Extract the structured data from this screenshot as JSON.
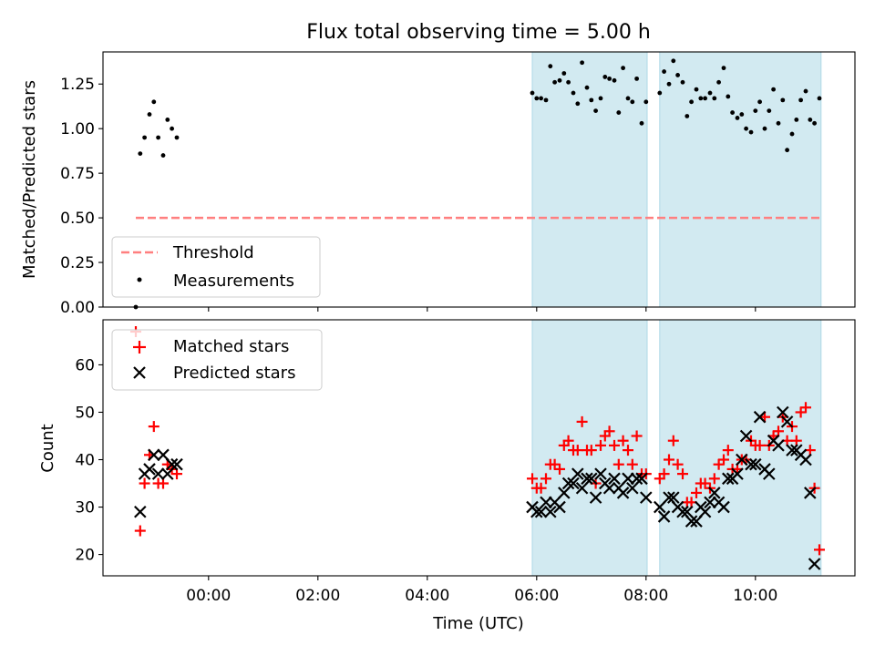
{
  "title": "Flux total observing time = 5.00 h",
  "chart_data": [
    {
      "type": "scatter",
      "panel": "top",
      "ylabel": "Matched/Predicted stars",
      "ylim": [
        0,
        1.43
      ],
      "y_ticks": [
        0.0,
        0.25,
        0.5,
        0.75,
        1.0,
        1.25
      ],
      "y_tick_labels": [
        "0.00",
        "0.25",
        "0.50",
        "0.75",
        "1.00",
        "1.25"
      ],
      "threshold": {
        "name": "Threshold",
        "value": 0.5,
        "x_start": -1.33,
        "x_end": 11.2,
        "color": "#ff7f7f"
      },
      "series": [
        {
          "name": "Measurements",
          "color": "#000000",
          "points": [
            [
              -1.33,
              0.0
            ],
            [
              -1.25,
              0.86
            ],
            [
              -1.17,
              0.95
            ],
            [
              -1.08,
              1.08
            ],
            [
              -1.0,
              1.15
            ],
            [
              -0.92,
              0.95
            ],
            [
              -0.83,
              0.85
            ],
            [
              -0.75,
              1.05
            ],
            [
              -0.67,
              1.0
            ],
            [
              -0.58,
              0.95
            ],
            [
              5.92,
              1.2
            ],
            [
              6.0,
              1.17
            ],
            [
              6.08,
              1.17
            ],
            [
              6.17,
              1.16
            ],
            [
              6.25,
              1.35
            ],
            [
              6.33,
              1.26
            ],
            [
              6.42,
              1.27
            ],
            [
              6.5,
              1.31
            ],
            [
              6.58,
              1.26
            ],
            [
              6.67,
              1.2
            ],
            [
              6.75,
              1.14
            ],
            [
              6.83,
              1.37
            ],
            [
              6.92,
              1.23
            ],
            [
              7.0,
              1.16
            ],
            [
              7.08,
              1.1
            ],
            [
              7.17,
              1.17
            ],
            [
              7.25,
              1.29
            ],
            [
              7.33,
              1.28
            ],
            [
              7.42,
              1.27
            ],
            [
              7.5,
              1.09
            ],
            [
              7.58,
              1.34
            ],
            [
              7.67,
              1.17
            ],
            [
              7.75,
              1.15
            ],
            [
              7.83,
              1.28
            ],
            [
              7.92,
              1.03
            ],
            [
              8.0,
              1.15
            ],
            [
              8.25,
              1.2
            ],
            [
              8.33,
              1.32
            ],
            [
              8.42,
              1.25
            ],
            [
              8.5,
              1.38
            ],
            [
              8.58,
              1.3
            ],
            [
              8.67,
              1.26
            ],
            [
              8.75,
              1.07
            ],
            [
              8.83,
              1.15
            ],
            [
              8.92,
              1.22
            ],
            [
              9.0,
              1.17
            ],
            [
              9.08,
              1.17
            ],
            [
              9.17,
              1.2
            ],
            [
              9.25,
              1.17
            ],
            [
              9.33,
              1.26
            ],
            [
              9.42,
              1.34
            ],
            [
              9.5,
              1.18
            ],
            [
              9.58,
              1.09
            ],
            [
              9.67,
              1.06
            ],
            [
              9.75,
              1.08
            ],
            [
              9.83,
              1.0
            ],
            [
              9.92,
              0.98
            ],
            [
              10.0,
              1.1
            ],
            [
              10.08,
              1.15
            ],
            [
              10.17,
              1.0
            ],
            [
              10.25,
              1.1
            ],
            [
              10.33,
              1.22
            ],
            [
              10.42,
              1.03
            ],
            [
              10.5,
              1.16
            ],
            [
              10.58,
              0.88
            ],
            [
              10.67,
              0.97
            ],
            [
              10.75,
              1.05
            ],
            [
              10.83,
              1.16
            ],
            [
              10.92,
              1.21
            ],
            [
              11.0,
              1.05
            ],
            [
              11.08,
              1.03
            ],
            [
              11.17,
              1.17
            ]
          ]
        }
      ],
      "legend": {
        "entries": [
          "Threshold",
          "Measurements"
        ],
        "placement": "lower-left"
      }
    },
    {
      "type": "scatter",
      "panel": "bottom",
      "xlabel": "Time (UTC)",
      "ylabel": "Count",
      "xlim": [
        -1.93,
        11.82
      ],
      "ylim": [
        15.5,
        69.5
      ],
      "x_ticks": [
        0,
        2,
        4,
        6,
        8,
        10
      ],
      "x_tick_labels": [
        "00:00",
        "02:00",
        "04:00",
        "06:00",
        "08:00",
        "10:00"
      ],
      "y_ticks": [
        20,
        30,
        40,
        50,
        60
      ],
      "y_tick_labels": [
        "20",
        "30",
        "40",
        "50",
        "60"
      ],
      "series": [
        {
          "name": "Matched stars",
          "color": "#ff0000",
          "marker": "plus",
          "points": [
            [
              -1.33,
              67
            ],
            [
              -1.25,
              25
            ],
            [
              -1.17,
              35
            ],
            [
              -1.08,
              41
            ],
            [
              -1.0,
              47
            ],
            [
              -0.92,
              35
            ],
            [
              -0.83,
              35
            ],
            [
              -0.75,
              39
            ],
            [
              -0.67,
              38
            ],
            [
              -0.58,
              37
            ],
            [
              5.92,
              36
            ],
            [
              6.0,
              34
            ],
            [
              6.08,
              34
            ],
            [
              6.17,
              36
            ],
            [
              6.25,
              39
            ],
            [
              6.33,
              39
            ],
            [
              6.42,
              38
            ],
            [
              6.5,
              43
            ],
            [
              6.58,
              44
            ],
            [
              6.67,
              42
            ],
            [
              6.75,
              42
            ],
            [
              6.83,
              48
            ],
            [
              6.92,
              42
            ],
            [
              7.0,
              42
            ],
            [
              7.08,
              35
            ],
            [
              7.17,
              43
            ],
            [
              7.25,
              45
            ],
            [
              7.33,
              46
            ],
            [
              7.42,
              43
            ],
            [
              7.5,
              39
            ],
            [
              7.58,
              44
            ],
            [
              7.67,
              42
            ],
            [
              7.75,
              39
            ],
            [
              7.83,
              45
            ],
            [
              7.92,
              37
            ],
            [
              8.0,
              37
            ],
            [
              8.25,
              36
            ],
            [
              8.33,
              37
            ],
            [
              8.42,
              40
            ],
            [
              8.5,
              44
            ],
            [
              8.58,
              39
            ],
            [
              8.67,
              37
            ],
            [
              8.75,
              31
            ],
            [
              8.83,
              31
            ],
            [
              8.92,
              33
            ],
            [
              9.0,
              35
            ],
            [
              9.08,
              35
            ],
            [
              9.17,
              34
            ],
            [
              9.25,
              36
            ],
            [
              9.33,
              39
            ],
            [
              9.42,
              40
            ],
            [
              9.5,
              42
            ],
            [
              9.58,
              38
            ],
            [
              9.67,
              38
            ],
            [
              9.75,
              40
            ],
            [
              9.83,
              40
            ],
            [
              9.92,
              44
            ],
            [
              10.0,
              43
            ],
            [
              10.08,
              43
            ],
            [
              10.17,
              49
            ],
            [
              10.25,
              43
            ],
            [
              10.33,
              45
            ],
            [
              10.42,
              46
            ],
            [
              10.5,
              49
            ],
            [
              10.58,
              44
            ],
            [
              10.67,
              47
            ],
            [
              10.75,
              44
            ],
            [
              10.83,
              50
            ],
            [
              10.92,
              51
            ],
            [
              11.0,
              42
            ],
            [
              11.08,
              34
            ],
            [
              11.17,
              21
            ]
          ]
        },
        {
          "name": "Predicted stars",
          "color": "#000000",
          "marker": "x",
          "points": [
            [
              -1.25,
              29
            ],
            [
              -1.17,
              37
            ],
            [
              -1.08,
              38
            ],
            [
              -1.0,
              41
            ],
            [
              -0.92,
              37
            ],
            [
              -0.83,
              41
            ],
            [
              -0.75,
              37
            ],
            [
              -0.67,
              39
            ],
            [
              -0.58,
              39
            ],
            [
              5.92,
              30
            ],
            [
              6.0,
              29
            ],
            [
              6.08,
              29
            ],
            [
              6.17,
              31
            ],
            [
              6.25,
              29
            ],
            [
              6.33,
              31
            ],
            [
              6.42,
              30
            ],
            [
              6.5,
              33
            ],
            [
              6.58,
              35
            ],
            [
              6.67,
              35
            ],
            [
              6.75,
              37
            ],
            [
              6.83,
              34
            ],
            [
              6.92,
              36
            ],
            [
              7.0,
              36
            ],
            [
              7.08,
              32
            ],
            [
              7.17,
              37
            ],
            [
              7.25,
              35
            ],
            [
              7.33,
              34
            ],
            [
              7.42,
              36
            ],
            [
              7.5,
              34
            ],
            [
              7.58,
              33
            ],
            [
              7.67,
              36
            ],
            [
              7.75,
              34
            ],
            [
              7.83,
              36
            ],
            [
              7.92,
              36
            ],
            [
              8.0,
              32
            ],
            [
              8.25,
              30
            ],
            [
              8.33,
              28
            ],
            [
              8.42,
              32
            ],
            [
              8.5,
              32
            ],
            [
              8.58,
              30
            ],
            [
              8.67,
              29
            ],
            [
              8.75,
              29
            ],
            [
              8.83,
              27
            ],
            [
              8.92,
              27
            ],
            [
              9.0,
              30
            ],
            [
              9.08,
              29
            ],
            [
              9.17,
              31
            ],
            [
              9.25,
              33
            ],
            [
              9.33,
              31
            ],
            [
              9.42,
              30
            ],
            [
              9.5,
              36
            ],
            [
              9.58,
              36
            ],
            [
              9.67,
              37
            ],
            [
              9.75,
              40
            ],
            [
              9.83,
              45
            ],
            [
              9.92,
              39
            ],
            [
              10.0,
              39
            ],
            [
              10.08,
              49
            ],
            [
              10.17,
              38
            ],
            [
              10.25,
              37
            ],
            [
              10.33,
              44
            ],
            [
              10.42,
              43
            ],
            [
              10.5,
              50
            ],
            [
              10.58,
              48
            ],
            [
              10.67,
              42
            ],
            [
              10.75,
              42
            ],
            [
              10.83,
              41
            ],
            [
              10.92,
              40
            ],
            [
              11.0,
              33
            ],
            [
              11.08,
              18
            ]
          ]
        }
      ],
      "legend": {
        "entries": [
          "Matched stars",
          "Predicted stars"
        ],
        "placement": "upper-left"
      }
    }
  ],
  "shaded_intervals": [
    [
      5.92,
      8.02
    ],
    [
      8.25,
      11.2
    ]
  ],
  "shade_color": "#add8e6"
}
